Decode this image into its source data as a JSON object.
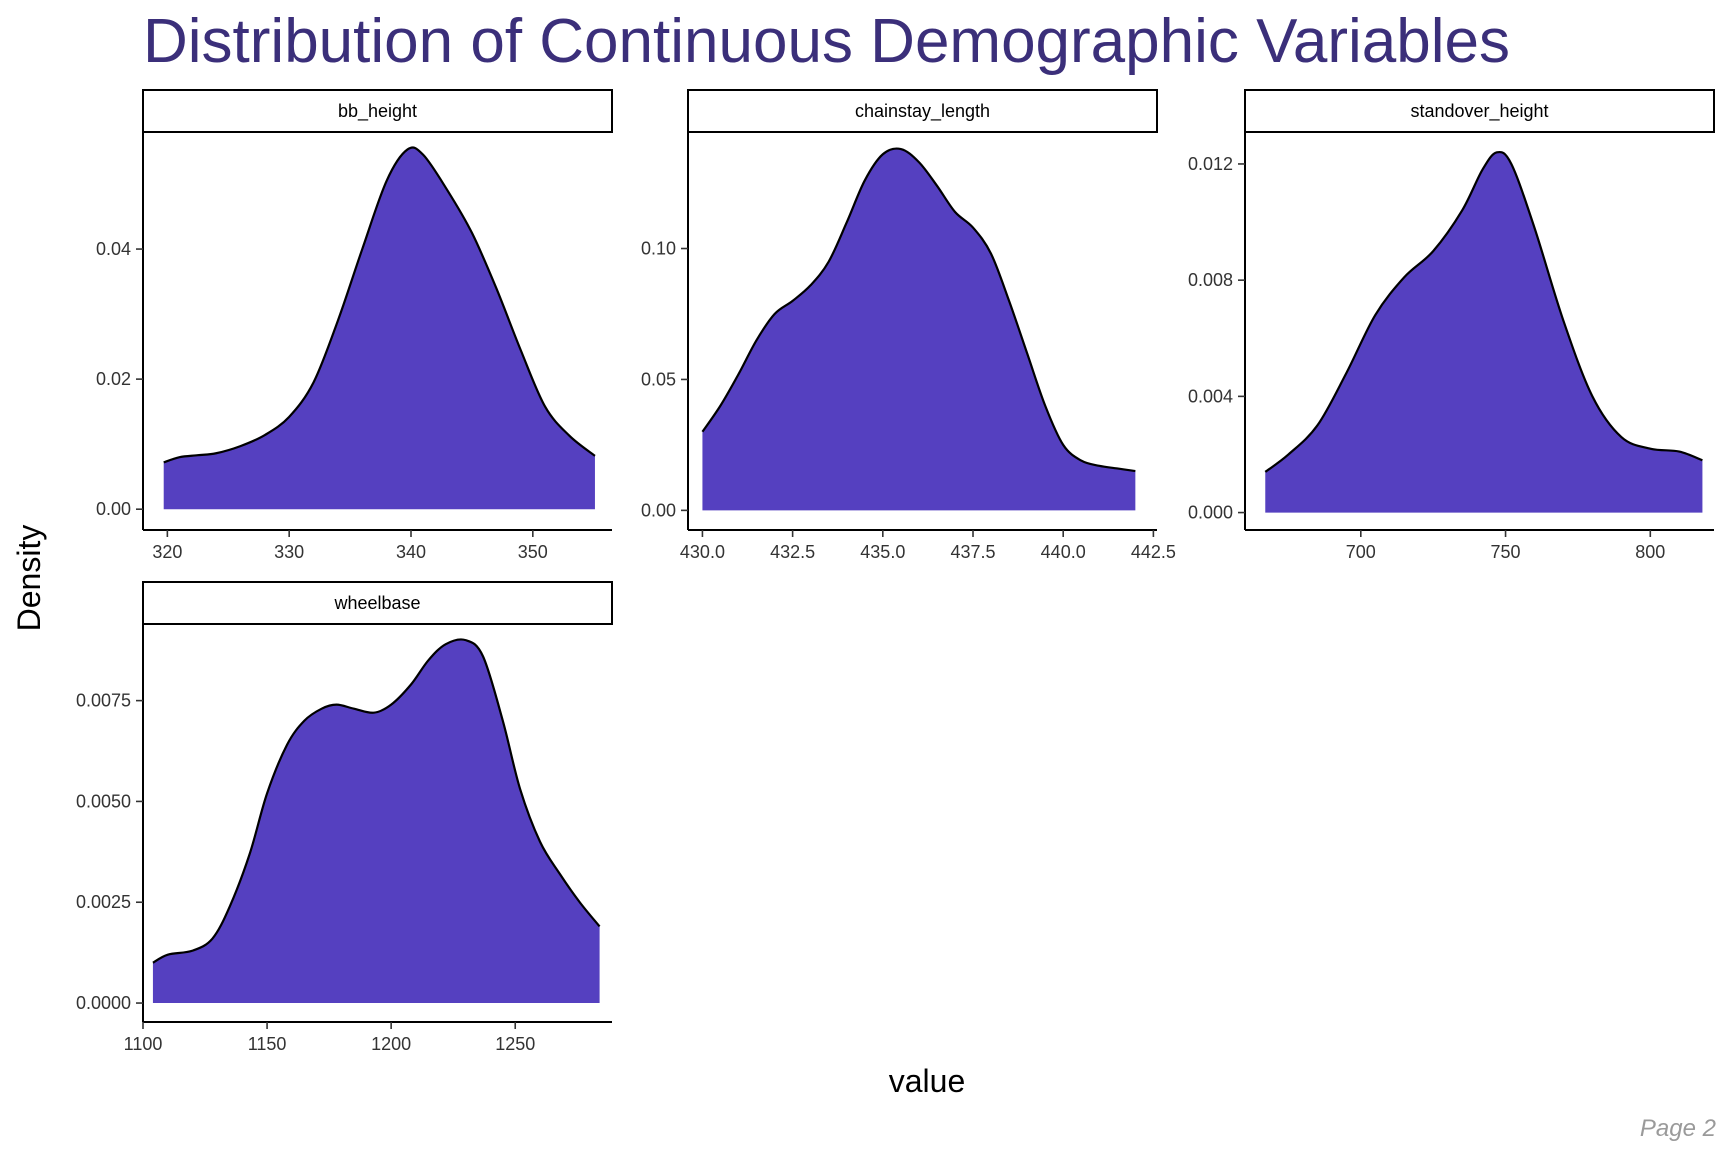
{
  "chart_data": {
    "type": "area",
    "title": "Distribution of Continuous Demographic Variables",
    "xlabel": "value",
    "ylabel": "Density",
    "page_label": "Page 2",
    "colors": {
      "title": "#3b2f7a",
      "fill": "#5540c0",
      "stroke": "#000000"
    },
    "grid": false,
    "panels": [
      {
        "name": "bb_height",
        "xlim": [
          318,
          356.5
        ],
        "ylim": [
          -0.0032,
          0.058
        ],
        "xticks": [
          320,
          330,
          340,
          350
        ],
        "xtick_labels": [
          "320",
          "330",
          "340",
          "350"
        ],
        "yticks": [
          0,
          0.02,
          0.04
        ],
        "ytick_labels": [
          "0.00",
          "0.02",
          "0.04"
        ],
        "x": [
          319.7,
          321,
          322.5,
          324,
          326,
          328,
          330,
          332,
          334,
          336,
          338,
          339.7,
          341,
          343,
          345,
          347,
          349,
          351,
          353,
          355.1
        ],
        "y": [
          0.0072,
          0.008,
          0.0083,
          0.0086,
          0.0097,
          0.0114,
          0.0142,
          0.0195,
          0.029,
          0.04,
          0.0505,
          0.0553,
          0.0545,
          0.049,
          0.0425,
          0.034,
          0.0245,
          0.0158,
          0.0113,
          0.0082
        ]
      },
      {
        "name": "chainstay_length",
        "xlim": [
          429.6,
          442.6
        ],
        "ylim": [
          -0.0075,
          0.1445
        ],
        "xticks": [
          430,
          432.5,
          435,
          437.5,
          440,
          442.5
        ],
        "xtick_labels": [
          "430.0",
          "432.5",
          "435.0",
          "437.5",
          "440.0",
          "442.5"
        ],
        "yticks": [
          0,
          0.05,
          0.1
        ],
        "ytick_labels": [
          "0.00",
          "0.05",
          "0.10"
        ],
        "x": [
          430.0,
          430.5,
          431.0,
          431.5,
          432.0,
          432.5,
          433.0,
          433.5,
          434.0,
          434.5,
          435.0,
          435.5,
          436.0,
          436.5,
          437.0,
          437.5,
          438.0,
          438.5,
          439.0,
          439.5,
          440.0,
          440.5,
          441.0,
          441.5,
          442.0
        ],
        "y": [
          0.03,
          0.04,
          0.052,
          0.065,
          0.075,
          0.08,
          0.086,
          0.095,
          0.11,
          0.126,
          0.136,
          0.138,
          0.133,
          0.124,
          0.114,
          0.108,
          0.098,
          0.08,
          0.06,
          0.04,
          0.025,
          0.019,
          0.017,
          0.016,
          0.015
        ]
      },
      {
        "name": "standover_height",
        "xlim": [
          660,
          822
        ],
        "ylim": [
          -0.0006,
          0.0131
        ],
        "xticks": [
          700,
          750,
          800
        ],
        "xtick_labels": [
          "700",
          "750",
          "800"
        ],
        "yticks": [
          0,
          0.004,
          0.008,
          0.012
        ],
        "ytick_labels": [
          "0.000",
          "0.004",
          "0.008",
          "0.012"
        ],
        "x": [
          667,
          675,
          685,
          695,
          705,
          715,
          725,
          735,
          742,
          747,
          752,
          760,
          770,
          780,
          790,
          800,
          810,
          818
        ],
        "y": [
          0.0014,
          0.002,
          0.003,
          0.0048,
          0.0068,
          0.0081,
          0.009,
          0.0104,
          0.0118,
          0.0124,
          0.012,
          0.0098,
          0.0066,
          0.004,
          0.0026,
          0.0022,
          0.0021,
          0.0018
        ]
      },
      {
        "name": "wheelbase",
        "xlim": [
          1100,
          1289
        ],
        "ylim": [
          -0.00047,
          0.0094
        ],
        "xticks": [
          1100,
          1150,
          1200,
          1250
        ],
        "xtick_labels": [
          "1100",
          "1150",
          "1200",
          "1250"
        ],
        "yticks": [
          0,
          0.0025,
          0.005,
          0.0075
        ],
        "ytick_labels": [
          "0.0000",
          "0.0025",
          "0.0050",
          "0.0075"
        ],
        "x": [
          1104,
          1110,
          1120,
          1128,
          1135,
          1143,
          1150,
          1158,
          1165,
          1172,
          1178,
          1185,
          1193,
          1200,
          1208,
          1215,
          1222,
          1230,
          1237,
          1245,
          1252,
          1260,
          1268,
          1276,
          1284
        ],
        "y": [
          0.001,
          0.0012,
          0.0013,
          0.0016,
          0.0024,
          0.0037,
          0.0052,
          0.0064,
          0.007,
          0.0073,
          0.0074,
          0.0073,
          0.0072,
          0.0074,
          0.0079,
          0.0085,
          0.0089,
          0.009,
          0.0086,
          0.007,
          0.0053,
          0.004,
          0.0032,
          0.0025,
          0.0019
        ]
      }
    ]
  }
}
